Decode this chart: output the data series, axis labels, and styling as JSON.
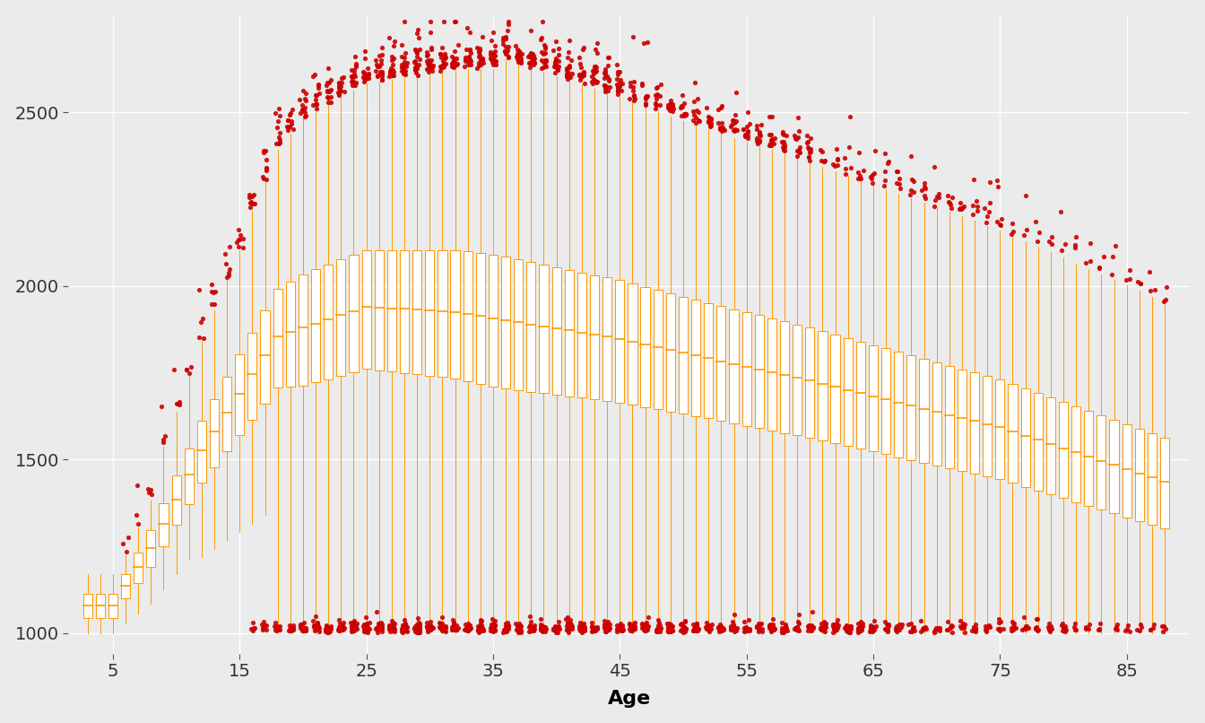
{
  "title": "",
  "xlabel": "Age",
  "ylabel": "",
  "xlim": [
    1.5,
    90
  ],
  "ylim": [
    940,
    2780
  ],
  "yticks": [
    1000,
    1500,
    2000,
    2500
  ],
  "xticks": [
    5,
    15,
    25,
    35,
    45,
    55,
    65,
    75,
    85
  ],
  "bg_color": "#EBEBEB",
  "grid_color": "white",
  "box_color": "#FF9900",
  "median_color": "#FF9900",
  "outlier_color": "#CC0000",
  "age_start": 3,
  "age_end": 88,
  "seed": 42
}
